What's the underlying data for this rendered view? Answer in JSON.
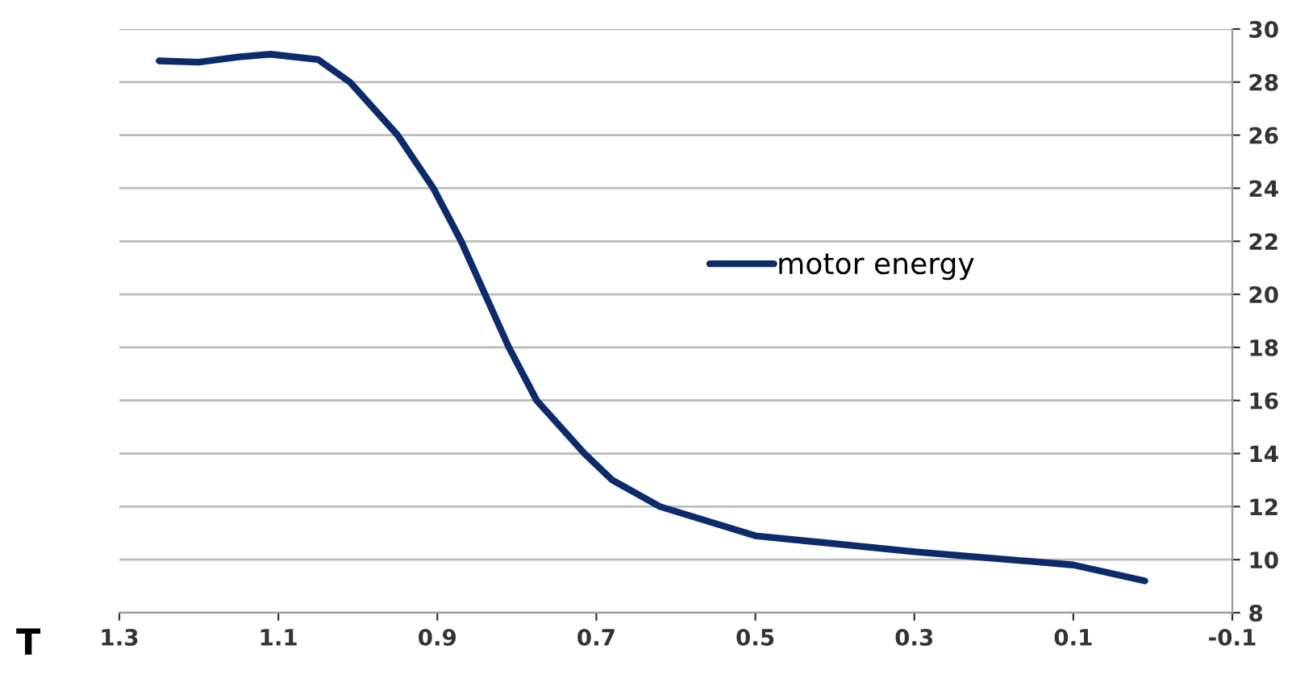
{
  "chart_data": {
    "type": "line",
    "xlabel": "T",
    "series": [
      {
        "name": "motor energy",
        "color": "#0d2a6b",
        "x": [
          1.25,
          1.2,
          1.15,
          1.11,
          1.05,
          1.01,
          0.95,
          0.905,
          0.87,
          0.84,
          0.81,
          0.775,
          0.715,
          0.68,
          0.62,
          0.5,
          0.3,
          0.1,
          0.01
        ],
        "values": [
          28.8,
          28.75,
          28.95,
          29.05,
          28.85,
          28.0,
          26.0,
          24.0,
          22.0,
          20.0,
          18.0,
          16.0,
          14.0,
          13.0,
          12.0,
          10.9,
          10.3,
          9.8,
          9.2
        ]
      }
    ],
    "xlim": [
      1.3,
      -0.1
    ],
    "xticks": [
      1.3,
      1.1,
      0.9,
      0.7,
      0.5,
      0.3,
      0.1,
      -0.1
    ],
    "ylim": [
      8,
      30
    ],
    "yticks": [
      8,
      10,
      12,
      14,
      16,
      18,
      20,
      22,
      24,
      26,
      28,
      30
    ],
    "grid": "y",
    "legend": "right",
    "marker": "none",
    "line_style": "solid"
  }
}
